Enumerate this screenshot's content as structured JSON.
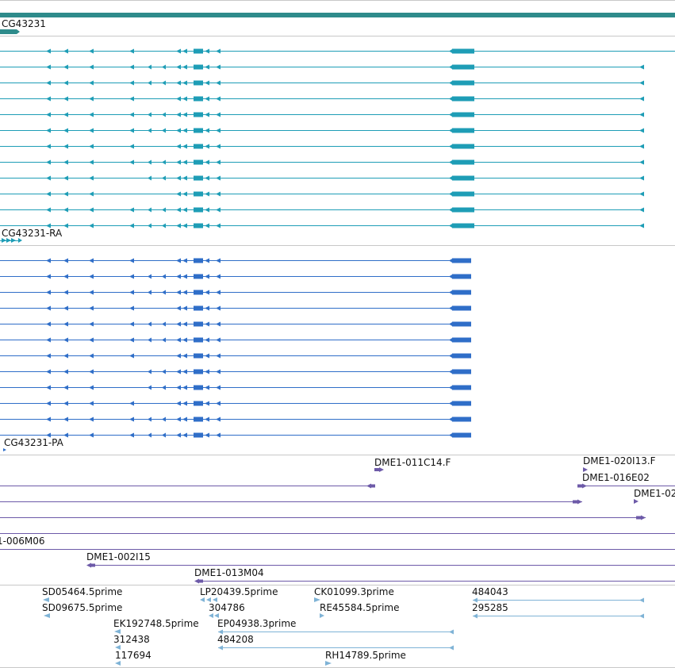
{
  "colors": {
    "gene": "#2e8b8b",
    "transcript": "#1e9db6",
    "cds": "#2f6ec8",
    "clone": "#6d5aa8",
    "est": "#7fb3d6",
    "separator": "#c8c8c8"
  },
  "tracks": {
    "gene": {
      "label": "CG43231"
    },
    "transcripts": {
      "label": "CG43231-RA"
    },
    "cds": {
      "label": "CG43231-PA"
    },
    "clones": {
      "labels": [
        "DME1-011C14.F",
        "DME1-020I13.F",
        "DME1-016E02",
        "DME1-02",
        "1-006M06",
        "DME1-002I15",
        "DME1-013M04"
      ]
    },
    "ests": {
      "labels": [
        "SD05464.5prime",
        "SD09675.5prime",
        "LP20439.5prime",
        "304786",
        "CK01099.3prime",
        "RE45584.5prime",
        "484043",
        "295285",
        "EK192748.5prime",
        "312438",
        "117694",
        "EP04938.3prime",
        "484208",
        "RH14789.5prime"
      ]
    }
  }
}
